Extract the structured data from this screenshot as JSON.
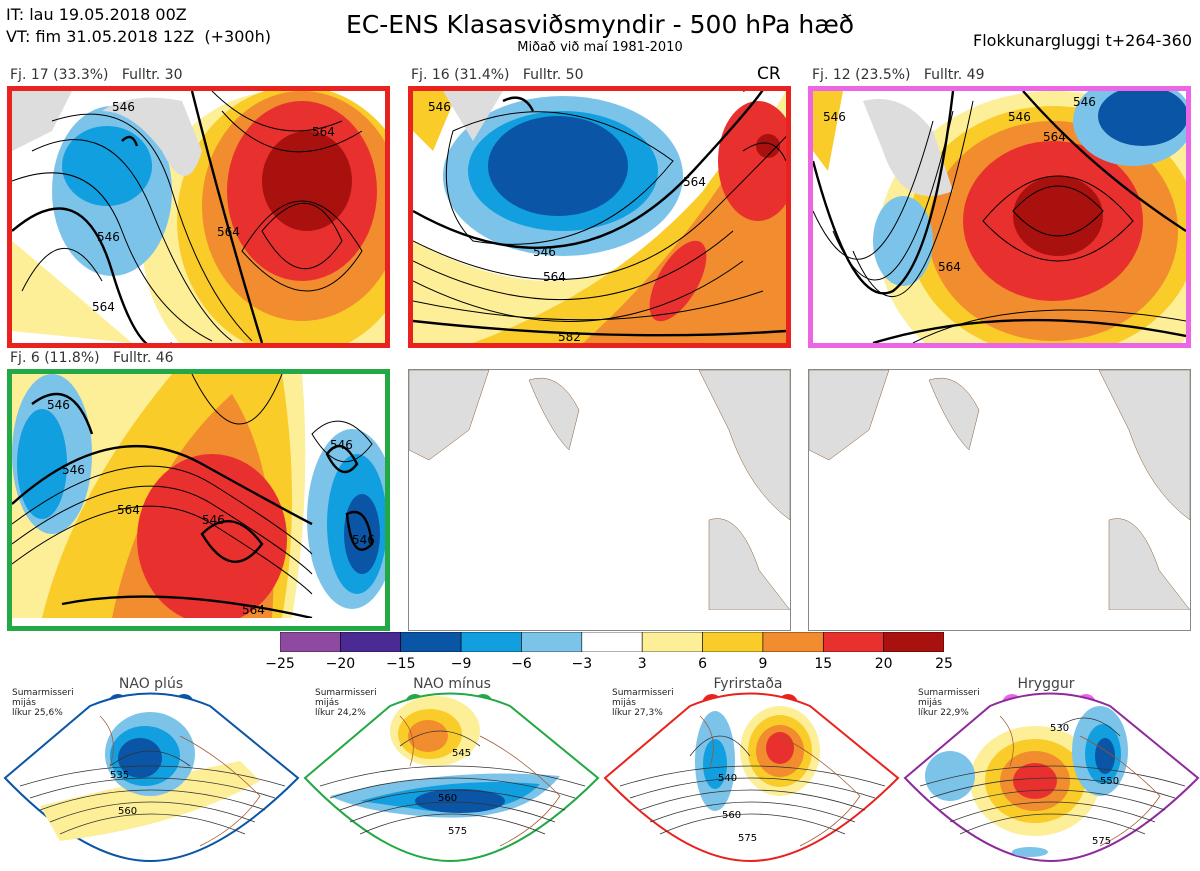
{
  "header": {
    "it_line": "IT: lau 19.05.2018 00Z",
    "vt_line": "VT: fim 31.05.2018 12Z  (+300h)",
    "title": "EC-ENS Klasasviðsmyndir - 500 hPa hæð",
    "subtitle": "Miðað við maí 1981-2010",
    "window": "Flokkunargluggi t+264-360"
  },
  "panels": [
    {
      "label": "Fj. 17 (33.3%)   Fulltr. 30",
      "border": "#e8231f",
      "regime": "fyrirstada",
      "badge": "",
      "contour_labels": [
        "546",
        "564",
        "564",
        "546",
        "564"
      ]
    },
    {
      "label": "Fj. 16 (31.4%)   Fulltr. 50",
      "border": "#e8231f",
      "regime": "fyrirstada",
      "badge": "CR",
      "contour_labels": [
        "546",
        "546",
        "564",
        "564",
        "582"
      ]
    },
    {
      "label": "Fj. 12 (23.5%)   Fulltr. 49",
      "border": "#ea66e4",
      "regime": "hryggur",
      "badge": "",
      "contour_labels": [
        "546",
        "546",
        "564",
        "564",
        "546"
      ]
    },
    {
      "label": "Fj. 6 (11.8%)   Fulltr. 46",
      "border": "#22a844",
      "regime": "nao_minus",
      "badge": "",
      "contour_labels": [
        "546",
        "546",
        "564",
        "546",
        "564",
        "546",
        "546"
      ]
    }
  ],
  "colorbar": {
    "colors": [
      "#8e4aa0",
      "#4b2a94",
      "#0a55a5",
      "#119fdf",
      "#7cc3ea",
      "#ffffff",
      "#fdee98",
      "#f9cc29",
      "#f18d2e",
      "#e8302e",
      "#a9110f"
    ],
    "ticks": [
      "−25",
      "−20",
      "−15",
      "−9",
      "−6",
      "−3",
      "3",
      "6",
      "9",
      "15",
      "20",
      "25"
    ]
  },
  "regimes": [
    {
      "title": "NAO plús",
      "note": "Sumarmisseri\nmijás\nlíkur 25,6%",
      "color": "#0a55a5",
      "contour_labels": [
        "535",
        "560"
      ]
    },
    {
      "title": "NAO mínus",
      "note": "Sumarmisseri\nmijás\nlíkur 24,2%",
      "color": "#22a844",
      "contour_labels": [
        "545",
        "560",
        "575"
      ]
    },
    {
      "title": "Fyrirstaða",
      "note": "Sumarmisseri\nmijás\nlíkur 27,3%",
      "color": "#e8231f",
      "contour_labels": [
        "540",
        "560",
        "575"
      ]
    },
    {
      "title": "Hryggur",
      "note": "Sumarmisseri\nmijás\nlíkur 22,9%",
      "color": "#ea66e4",
      "contour_labels": [
        "530",
        "550",
        "575"
      ]
    }
  ]
}
